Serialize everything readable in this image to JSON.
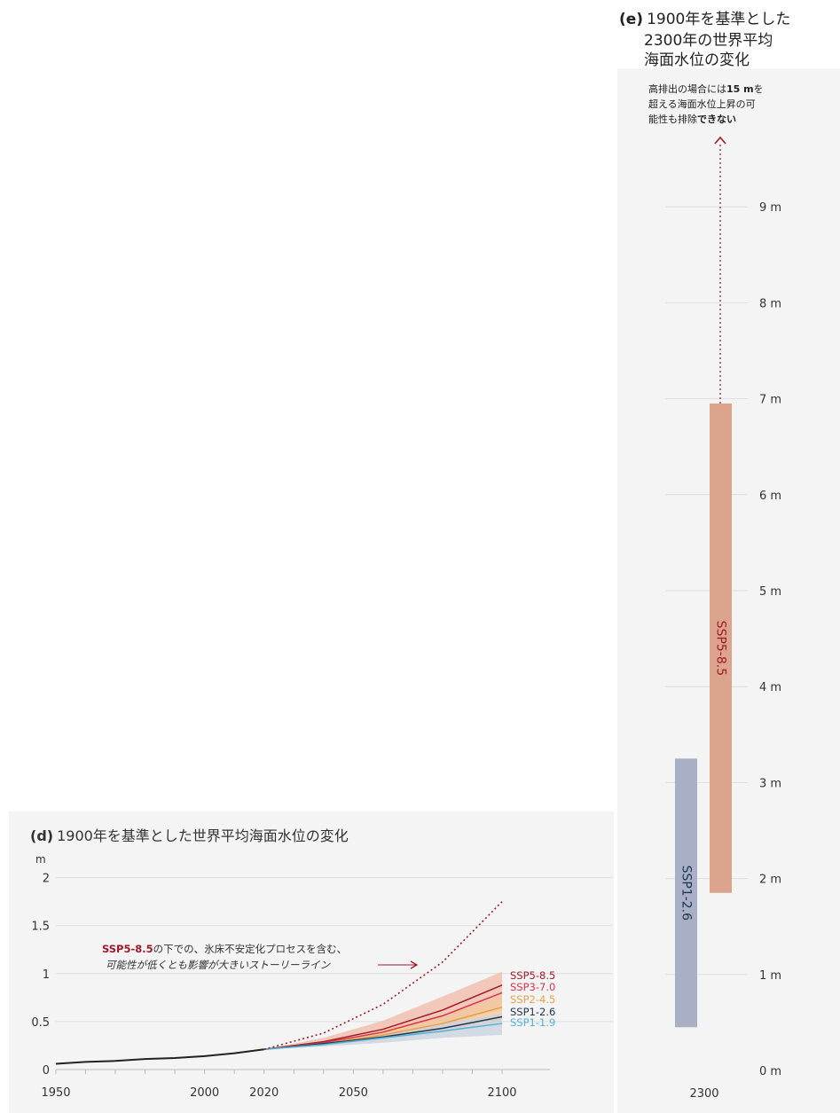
{
  "panel_d": {
    "title_prefix": "(d)",
    "title_text": "1900年を基準とした世界平均海面水位の変化",
    "unit": "m",
    "annotation_line1_bold": "SSP5-8.5",
    "annotation_line1_rest": "の下での、氷床不安定化プロセスを含む、",
    "annotation_line2": "可能性が低くとも影響が大きいストーリーライン"
  },
  "panel_e": {
    "title_prefix": "(e)",
    "title_line1": "1900年を基準とした",
    "title_line2": "2300年の世界平均",
    "title_line3": "海面水位の変化",
    "note_line1_a": "高排出の場合には",
    "note_line1_b": "15 m",
    "note_line1_c": "を",
    "note_line2": "超える海面水位上昇の可",
    "note_line3_a": "能性も排除",
    "note_line3_b": "できない"
  },
  "colors": {
    "ssp585": "#9e1b2b",
    "ssp370": "#d9344a",
    "ssp245": "#e8a04a",
    "ssp126": "#1f3550",
    "ssp119": "#4fb3d6",
    "bar_ssp585": "#dca48d",
    "bar_ssp126": "#a9afc5",
    "grid": "#dddddd",
    "axis_text": "#333333"
  },
  "chart_data": [
    {
      "type": "line",
      "title": "1900年を基準とした世界平均海面水位の変化",
      "ylabel": "m",
      "xlim": [
        1950,
        2100
      ],
      "ylim": [
        0,
        2
      ],
      "grid": true,
      "x_ticks": [
        "1950",
        "2000",
        "2020",
        "2050",
        "2100"
      ],
      "y_ticks": [
        "0",
        "0.5",
        "1",
        "1.5",
        "2"
      ],
      "observed": {
        "x": [
          1950,
          1960,
          1970,
          1980,
          1990,
          2000,
          2010,
          2020
        ],
        "y": [
          0.06,
          0.08,
          0.09,
          0.11,
          0.12,
          0.14,
          0.17,
          0.21
        ]
      },
      "series": [
        {
          "name": "SSP5-8.5",
          "x": [
            2020,
            2040,
            2060,
            2080,
            2100
          ],
          "y": [
            0.21,
            0.29,
            0.42,
            0.62,
            0.88
          ],
          "low": [
            0.21,
            0.25,
            0.33,
            0.46,
            0.63
          ],
          "high": [
            0.21,
            0.33,
            0.51,
            0.76,
            1.02
          ]
        },
        {
          "name": "SSP3-7.0",
          "x": [
            2020,
            2040,
            2060,
            2080,
            2100
          ],
          "y": [
            0.21,
            0.28,
            0.39,
            0.56,
            0.8
          ]
        },
        {
          "name": "SSP2-4.5",
          "x": [
            2020,
            2040,
            2060,
            2080,
            2100
          ],
          "y": [
            0.21,
            0.27,
            0.36,
            0.48,
            0.65
          ],
          "low": [
            0.21,
            0.25,
            0.31,
            0.4,
            0.5
          ],
          "high": [
            0.21,
            0.3,
            0.42,
            0.57,
            0.77
          ]
        },
        {
          "name": "SSP1-2.6",
          "x": [
            2020,
            2040,
            2060,
            2080,
            2100
          ],
          "y": [
            0.21,
            0.27,
            0.34,
            0.43,
            0.55
          ]
        },
        {
          "name": "SSP1-1.9",
          "x": [
            2020,
            2040,
            2060,
            2080,
            2100
          ],
          "y": [
            0.21,
            0.26,
            0.33,
            0.4,
            0.48
          ],
          "low": [
            0.21,
            0.24,
            0.28,
            0.33,
            0.36
          ],
          "high": [
            0.21,
            0.28,
            0.37,
            0.48,
            0.58
          ]
        }
      ],
      "storyline": {
        "label": "SSP5-8.5",
        "x": [
          2020,
          2040,
          2060,
          2080,
          2100
        ],
        "y": [
          0.21,
          0.38,
          0.68,
          1.12,
          1.75
        ]
      }
    },
    {
      "type": "bar",
      "title": "1900年を基準とした2300年の世界平均海面水位の変化",
      "x_ticks": [
        "2300"
      ],
      "ylim": [
        0,
        9
      ],
      "grid": true,
      "y_ticks": [
        "0 m",
        "1 m",
        "2 m",
        "3 m",
        "4 m",
        "5 m",
        "6 m",
        "7 m",
        "8 m",
        "9 m"
      ],
      "ranges": [
        {
          "name": "SSP1-2.6",
          "low": 0.45,
          "high": 3.25
        },
        {
          "name": "SSP5-8.5",
          "low": 1.85,
          "high": 6.95
        }
      ],
      "arrow_extends_to": 15
    }
  ]
}
